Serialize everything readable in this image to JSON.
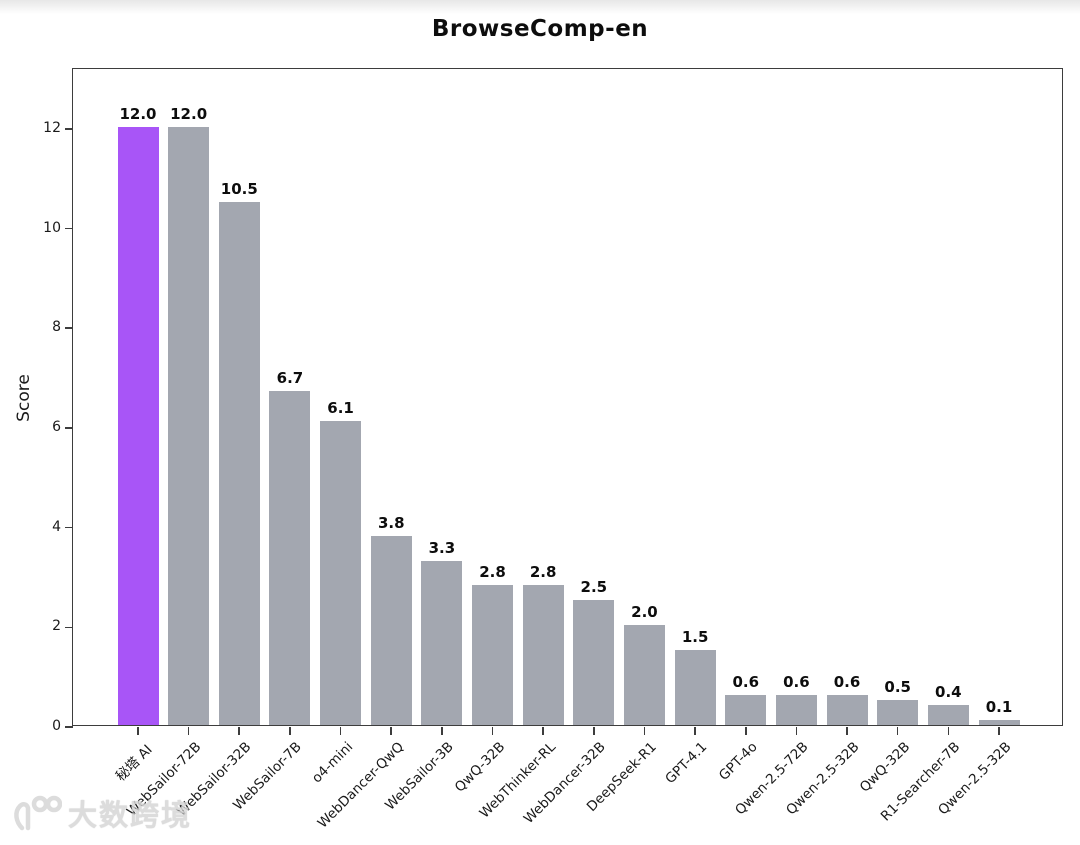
{
  "title": "BrowseComp-en",
  "chart_data": {
    "type": "bar",
    "title": "BrowseComp-en",
    "xlabel": "",
    "ylabel": "Score",
    "categories": [
      "秘塔 AI",
      "WebSailor-72B",
      "WebSailor-32B",
      "WebSailor-7B",
      "o4-mini",
      "WebDancer-QwQ",
      "WebSailor-3B",
      "QwQ-32B",
      "WebThinker-RL",
      "WebDancer-32B",
      "DeepSeek-R1",
      "GPT-4.1",
      "GPT-4o",
      "Qwen-2.5-72B",
      "Qwen-2.5-32B",
      "QwQ-32B",
      "R1-Searcher-7B",
      "Qwen-2.5-32B"
    ],
    "values": [
      12.0,
      12.0,
      10.5,
      6.7,
      6.1,
      3.8,
      3.3,
      2.8,
      2.8,
      2.5,
      2.0,
      1.5,
      0.6,
      0.6,
      0.6,
      0.5,
      0.4,
      0.1
    ],
    "value_labels": [
      "12.0",
      "12.0",
      "10.5",
      "6.7",
      "6.1",
      "3.8",
      "3.3",
      "2.8",
      "2.8",
      "2.5",
      "2.0",
      "1.5",
      "0.6",
      "0.6",
      "0.6",
      "0.5",
      "0.4",
      "0.1"
    ],
    "yticks": [
      0,
      2,
      4,
      6,
      8,
      10,
      12
    ],
    "ylim": [
      0,
      13.2
    ],
    "grid": false,
    "legend": null,
    "highlight_index": 0,
    "highlight_color": "#a855f7",
    "bar_color": "#a3a7b0",
    "tick_label_rotation_deg": 45
  },
  "watermark": {
    "logo": "100-logo",
    "text": "大数跨境"
  }
}
